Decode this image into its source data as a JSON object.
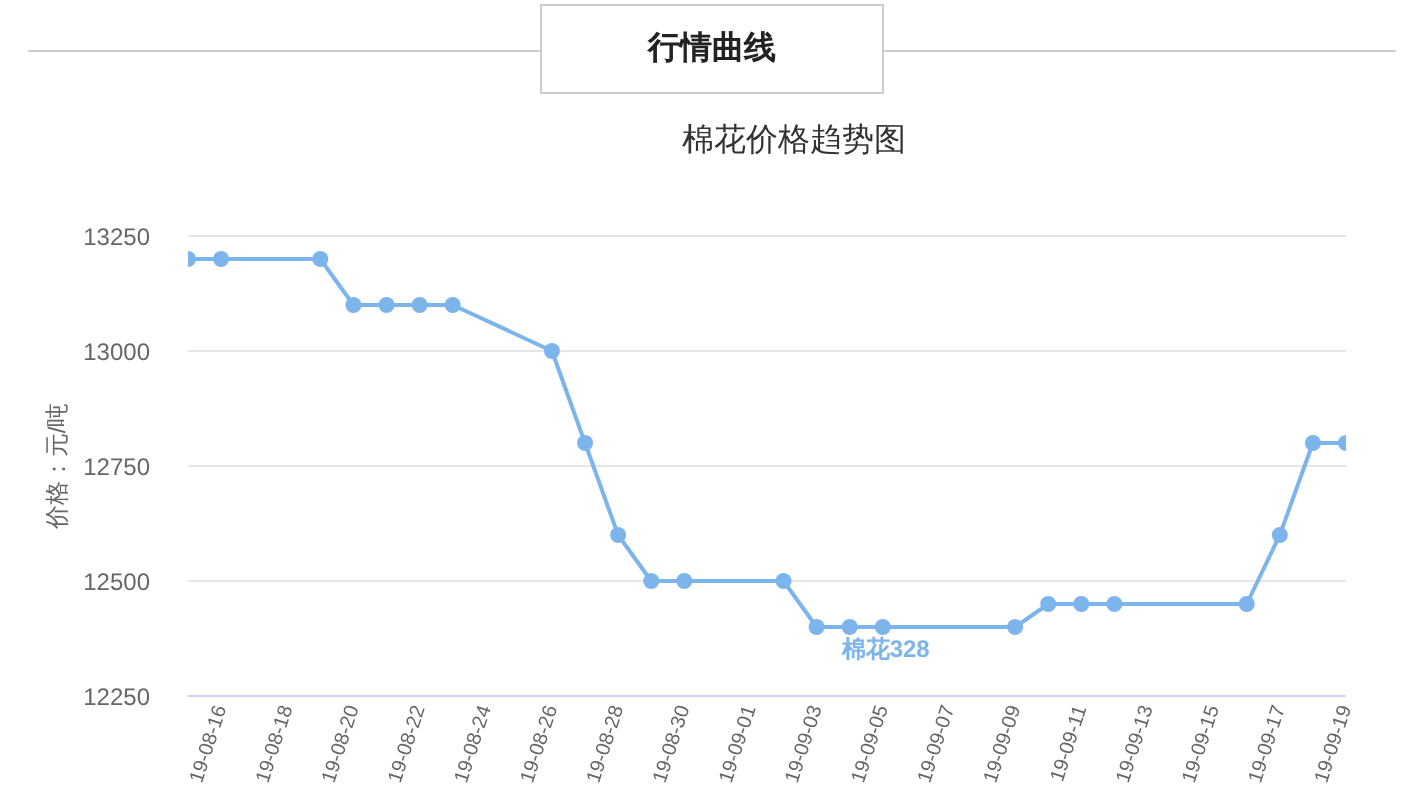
{
  "chart_data": {
    "type": "line",
    "title": "棉花价格趋势图",
    "ylabel": "价格：元/吨",
    "annotations": [
      "行情曲线"
    ],
    "x": [
      "--08-15",
      "--08-16",
      "--08-19",
      "--08-20",
      "--08-21",
      "--08-22",
      "--08-23",
      "--08-26",
      "--08-27",
      "--08-28",
      "--08-29",
      "--08-30",
      "--09-02",
      "--09-03",
      "--09-04",
      "--09-05",
      "--09-09",
      "--09-10",
      "--09-11",
      "--09-12",
      "--09-16",
      "--09-17",
      "--09-18",
      "--09-19"
    ],
    "series": [
      {
        "name": "棉花328",
        "color": "#7cb5ec",
        "values": [
          13200,
          13200,
          13200,
          13100,
          13100,
          13100,
          13100,
          13000,
          12800,
          12600,
          12500,
          12500,
          12500,
          12400,
          12400,
          12400,
          12400,
          12450,
          12450,
          12450,
          12450,
          12600,
          12800,
          12800
        ]
      }
    ],
    "xlim": [
      "--08-15",
      "--09-19"
    ],
    "xticks": [
      {
        "value": "--08-16",
        "label": "19-08-16"
      },
      {
        "value": "--08-18",
        "label": "19-08-18"
      },
      {
        "value": "--08-20",
        "label": "19-08-20"
      },
      {
        "value": "--08-22",
        "label": "19-08-22"
      },
      {
        "value": "--08-24",
        "label": "19-08-24"
      },
      {
        "value": "--08-26",
        "label": "19-08-26"
      },
      {
        "value": "--08-28",
        "label": "19-08-28"
      },
      {
        "value": "--08-30",
        "label": "19-08-30"
      },
      {
        "value": "--09-01",
        "label": "19-09-01"
      },
      {
        "value": "--09-03",
        "label": "19-09-03"
      },
      {
        "value": "--09-05",
        "label": "19-09-05"
      },
      {
        "value": "--09-07",
        "label": "19-09-07"
      },
      {
        "value": "--09-09",
        "label": "19-09-09"
      },
      {
        "value": "--09-11",
        "label": "19-09-11"
      },
      {
        "value": "--09-13",
        "label": "19-09-13"
      },
      {
        "value": "--09-15",
        "label": "19-09-15"
      },
      {
        "value": "--09-17",
        "label": "19-09-17"
      },
      {
        "value": "--09-19",
        "label": "19-09-19"
      }
    ],
    "ylim": [
      12250,
      13250
    ],
    "yticks": [
      12250,
      12500,
      12750,
      13000,
      13250
    ],
    "grid": "y",
    "marker": "circle",
    "line_style": "solid"
  }
}
